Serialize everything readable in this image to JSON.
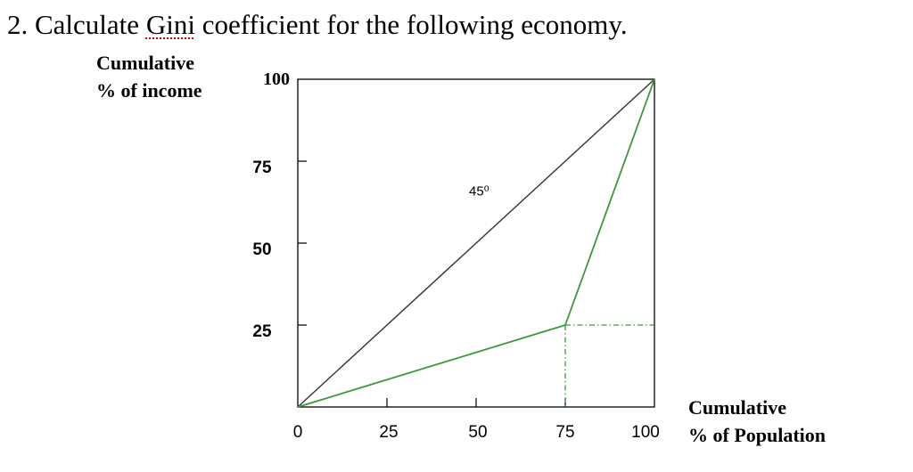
{
  "question": {
    "number": "2.",
    "before": "Calculate ",
    "underlined": "Gini",
    "after": " coefficient for the following economy."
  },
  "chart_data": {
    "type": "line",
    "ylabel_line1": "Cumulative",
    "ylabel_line2": "% of income",
    "xlabel_line1": "Cumulative",
    "xlabel_line2": "% of Population",
    "xlim": [
      0,
      100
    ],
    "ylim": [
      0,
      100
    ],
    "x_ticks": [
      "0",
      "25",
      "50",
      "75",
      "100"
    ],
    "y_ticks": [
      "100",
      "75",
      "50",
      "25"
    ],
    "annotation": "45⁰",
    "series": [
      {
        "values_x": [
          0,
          100
        ],
        "values_y": [
          0,
          100
        ],
        "color": "#333333"
      },
      {
        "values_x": [
          0,
          75,
          100
        ],
        "values_y": [
          0,
          25,
          100
        ],
        "color": "#3a9a3a"
      }
    ],
    "reference_lines": {
      "x": 75,
      "y": 25,
      "color": "#3a9a3a",
      "style": "dash-dot"
    }
  }
}
